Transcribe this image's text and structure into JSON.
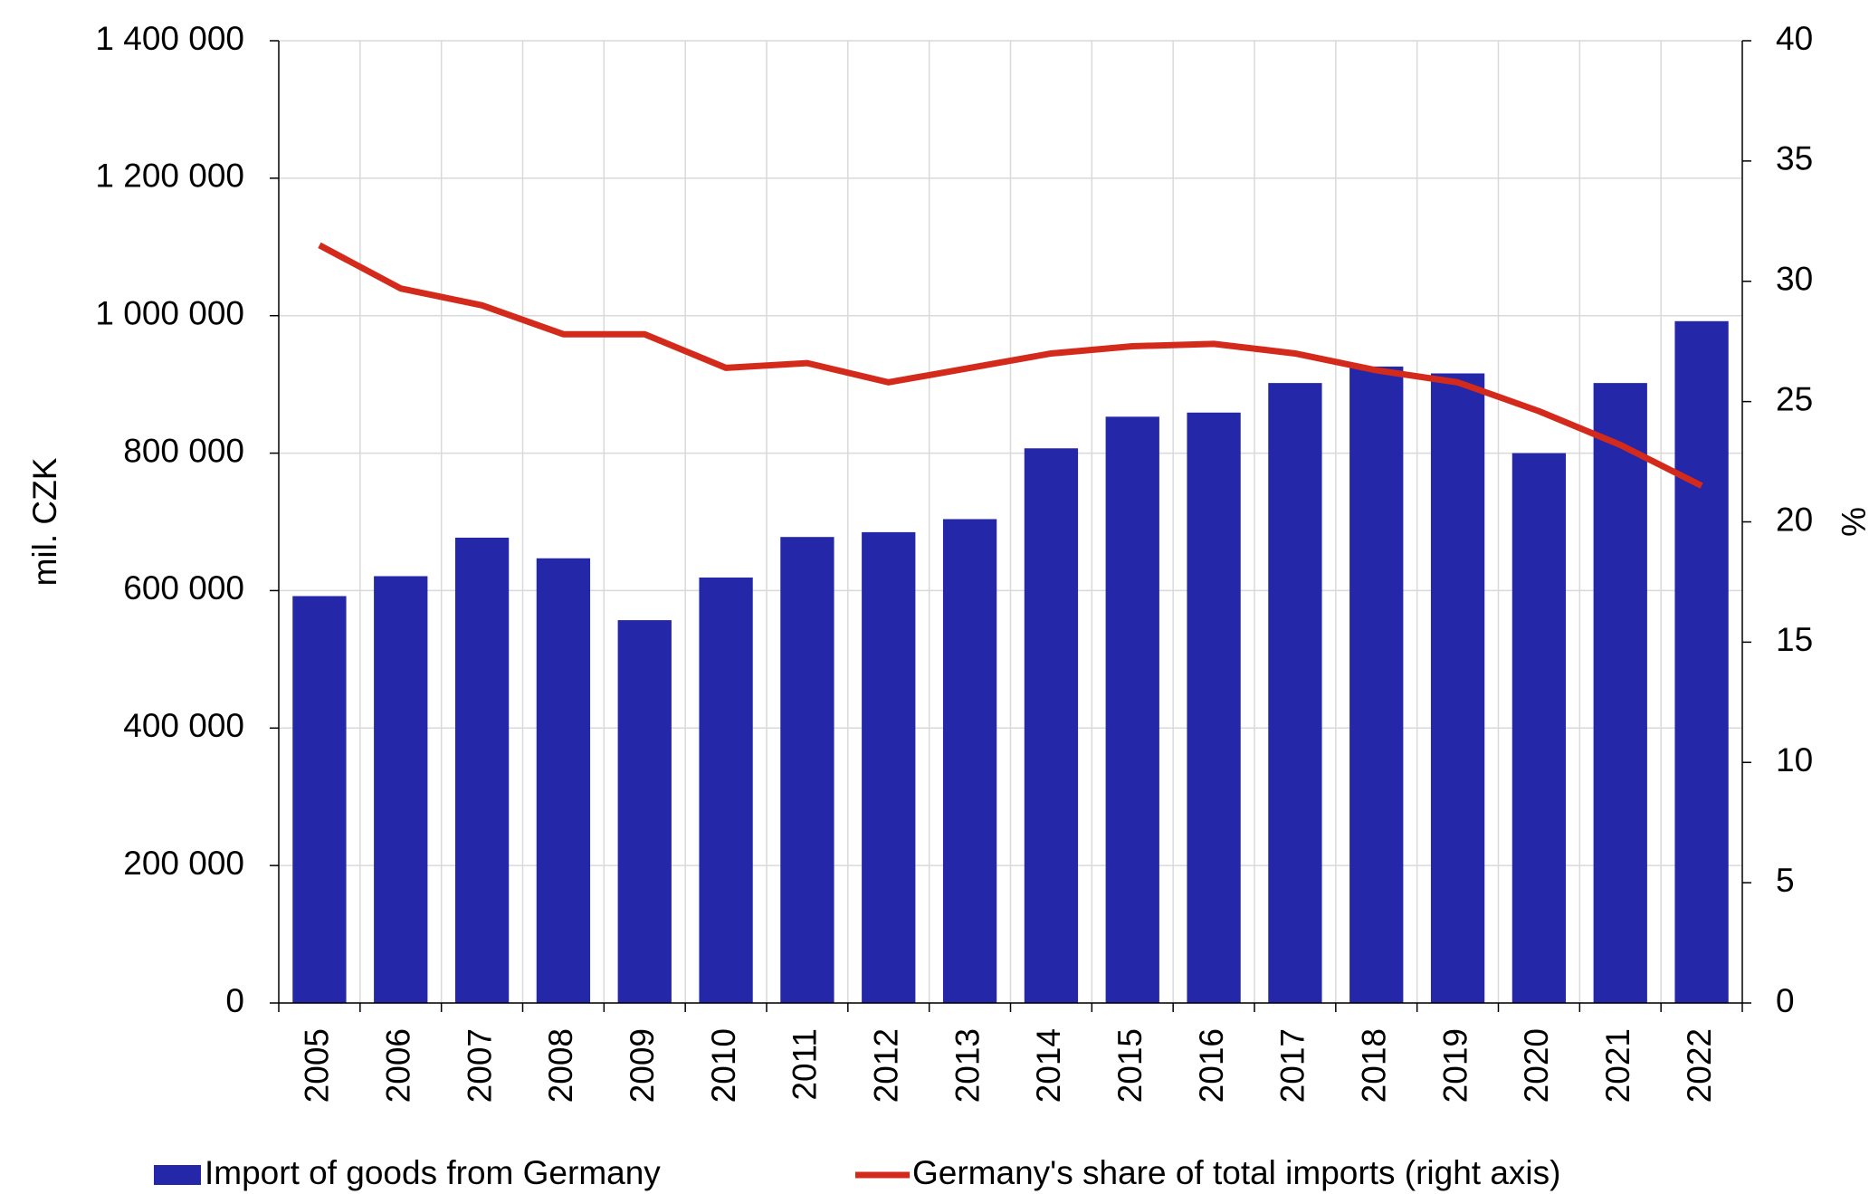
{
  "chart_data": {
    "type": "bar_line",
    "categories": [
      "2005",
      "2006",
      "2007",
      "2008",
      "2009",
      "2010",
      "2011",
      "2012",
      "2013",
      "2014",
      "2015",
      "2016",
      "2017",
      "2018",
      "2019",
      "2020",
      "2021",
      "2022"
    ],
    "series": [
      {
        "name": "Import of goods from Germany",
        "type": "bar",
        "color": "#2427a8",
        "values": [
          592000,
          621000,
          677000,
          647000,
          557000,
          619000,
          678000,
          685000,
          704000,
          807000,
          853000,
          859000,
          902000,
          926000,
          916000,
          800000,
          902000,
          992000
        ]
      },
      {
        "name": "Germany's share of total imports (right axis)",
        "type": "line",
        "axis": "y2",
        "color": "#d42a1c",
        "values": [
          31.5,
          29.7,
          29.0,
          27.8,
          27.8,
          26.4,
          26.6,
          25.8,
          26.4,
          27.0,
          27.3,
          27.4,
          27.0,
          26.3,
          25.8,
          24.6,
          23.2,
          21.5
        ]
      }
    ],
    "y_label": "mil. CZK",
    "y2_label": "%",
    "ylim": [
      0,
      1400000
    ],
    "yticks": [
      0,
      {
        "value": 200000,
        "label": "200 000"
      },
      {
        "value": 400000,
        "label": "400 000"
      },
      {
        "value": 600000,
        "label": "600 000"
      },
      {
        "value": 800000,
        "label": "800 000"
      },
      {
        "value": 1000000,
        "label": "1 000 000"
      },
      {
        "value": 1200000,
        "label": "1 200 000"
      },
      {
        "value": 1400000,
        "label": "1 400 000"
      }
    ],
    "y2lim": [
      0,
      40
    ],
    "y2ticks": [
      0,
      5,
      10,
      15,
      20,
      25,
      30,
      35,
      40
    ],
    "grid": true,
    "legend": "bottom"
  }
}
